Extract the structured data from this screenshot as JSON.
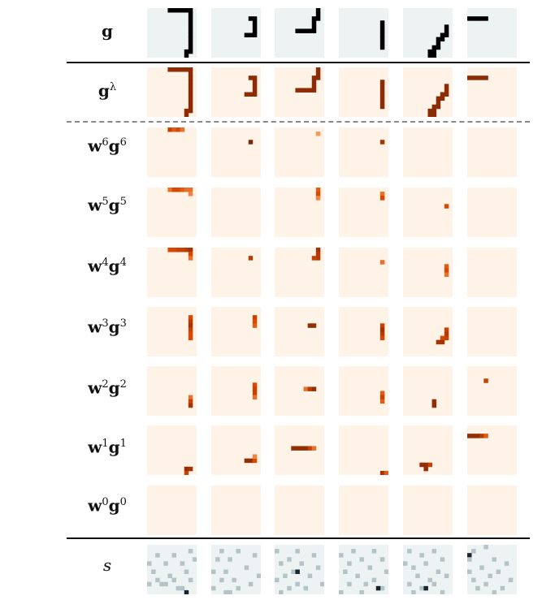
{
  "rows": [
    {
      "id": "g",
      "label": "g",
      "sup": "",
      "style": "bold-serif",
      "bg": "#edf2f2",
      "mode": "binary"
    },
    {
      "id": "g_lambda",
      "label": "g",
      "sup": "λ",
      "style": "bold-serif",
      "bg": "#fff2e6",
      "mode": "heat"
    },
    {
      "id": "w6g6",
      "label": "w",
      "label2": "g",
      "sup": "6",
      "style": "bold-serif",
      "bg": "#fff2e6",
      "mode": "heat"
    },
    {
      "id": "w5g5",
      "label": "w",
      "label2": "g",
      "sup": "5",
      "style": "bold-serif",
      "bg": "#fff2e6",
      "mode": "heat"
    },
    {
      "id": "w4g4",
      "label": "w",
      "label2": "g",
      "sup": "4",
      "style": "bold-serif",
      "bg": "#fff2e6",
      "mode": "heat"
    },
    {
      "id": "w3g3",
      "label": "w",
      "label2": "g",
      "sup": "3",
      "style": "bold-serif",
      "bg": "#fff2e6",
      "mode": "heat"
    },
    {
      "id": "w2g2",
      "label": "w",
      "label2": "g",
      "sup": "2",
      "style": "bold-serif",
      "bg": "#fff2e6",
      "mode": "heat"
    },
    {
      "id": "w1g1",
      "label": "w",
      "label2": "g",
      "sup": "1",
      "style": "bold-serif",
      "bg": "#fff2e6",
      "mode": "heat"
    },
    {
      "id": "w0g0",
      "label": "w",
      "label2": "g",
      "sup": "0",
      "style": "bold-serif",
      "bg": "#fff2e6",
      "mode": "heat"
    },
    {
      "id": "s",
      "label": "s",
      "sup": "",
      "style": "italic",
      "bg": "#edf2f2",
      "mode": "noise"
    }
  ],
  "colors": {
    "heat_dark": "#7f2704",
    "heat_mid": "#d94801",
    "heat_light": "#fdae6b",
    "binary_ink": "#000000",
    "noise_light": "#b4c4c6",
    "noise_dark": "#1b2333"
  },
  "column_count": 6,
  "grid_cells": 12,
  "shapes": [
    {
      "cells": [
        [
          0,
          5
        ],
        [
          0,
          6
        ],
        [
          0,
          7
        ],
        [
          0,
          8
        ],
        [
          0,
          9
        ],
        [
          0,
          10
        ],
        [
          1,
          10
        ],
        [
          2,
          10
        ],
        [
          3,
          10
        ],
        [
          4,
          10
        ],
        [
          5,
          10
        ],
        [
          6,
          10
        ],
        [
          7,
          10
        ],
        [
          8,
          10
        ],
        [
          9,
          10
        ],
        [
          10,
          10
        ],
        [
          10,
          9
        ],
        [
          11,
          9
        ]
      ]
    },
    {
      "cells": [
        [
          2,
          9
        ],
        [
          2,
          10
        ],
        [
          3,
          10
        ],
        [
          4,
          10
        ],
        [
          5,
          10
        ],
        [
          6,
          10
        ],
        [
          6,
          9
        ],
        [
          6,
          8
        ]
      ]
    },
    {
      "cells": [
        [
          0,
          10
        ],
        [
          1,
          10
        ],
        [
          2,
          10
        ],
        [
          2,
          9
        ],
        [
          3,
          9
        ],
        [
          4,
          9
        ],
        [
          5,
          9
        ],
        [
          5,
          8
        ],
        [
          5,
          7
        ],
        [
          5,
          6
        ],
        [
          5,
          5
        ]
      ]
    },
    {
      "cells": [
        [
          3,
          10
        ],
        [
          4,
          10
        ],
        [
          5,
          10
        ],
        [
          6,
          10
        ],
        [
          7,
          10
        ],
        [
          8,
          10
        ],
        [
          9,
          10
        ]
      ]
    },
    {
      "cells": [
        [
          4,
          10
        ],
        [
          5,
          10
        ],
        [
          6,
          10
        ],
        [
          6,
          9
        ],
        [
          7,
          9
        ],
        [
          7,
          8
        ],
        [
          8,
          8
        ],
        [
          9,
          8
        ],
        [
          9,
          7
        ],
        [
          10,
          7
        ],
        [
          11,
          7
        ],
        [
          11,
          6
        ],
        [
          10,
          6
        ]
      ]
    },
    {
      "cells": [
        [
          2,
          0
        ],
        [
          2,
          1
        ],
        [
          2,
          2
        ],
        [
          2,
          3
        ],
        [
          2,
          4
        ]
      ]
    }
  ],
  "layers": {
    "w6g6": [
      [
        [
          0,
          5,
          0.6
        ],
        [
          0,
          6,
          0.4
        ],
        [
          0,
          7,
          0.5
        ],
        [
          0,
          8,
          0.3
        ]
      ],
      [
        [
          3,
          9,
          1.0
        ]
      ],
      [
        [
          1,
          10,
          0.1
        ]
      ],
      [
        [
          3,
          10,
          0.8
        ]
      ],
      [],
      []
    ],
    "w5g5": [
      [
        [
          0,
          5,
          0.3
        ],
        [
          0,
          6,
          0.5
        ],
        [
          0,
          7,
          0.5
        ],
        [
          0,
          8,
          0.4
        ],
        [
          0,
          9,
          0.3
        ],
        [
          0,
          10,
          0.3
        ],
        [
          1,
          10,
          0.2
        ]
      ],
      [],
      [
        [
          0,
          10,
          0.4
        ],
        [
          1,
          10,
          0.5
        ],
        [
          2,
          10,
          0.2
        ]
      ],
      [
        [
          1,
          10,
          0.3
        ],
        [
          2,
          10,
          0.5
        ]
      ],
      [
        [
          4,
          10,
          0.5
        ]
      ],
      []
    ],
    "w4g4": [
      [
        [
          0,
          5,
          0.5
        ],
        [
          0,
          6,
          0.5
        ],
        [
          0,
          7,
          0.6
        ],
        [
          0,
          8,
          0.6
        ],
        [
          0,
          9,
          0.7
        ],
        [
          0,
          10,
          0.8
        ],
        [
          1,
          10,
          0.5
        ],
        [
          2,
          10,
          0.3
        ]
      ],
      [
        [
          2,
          9,
          0.7
        ]
      ],
      [
        [
          0,
          10,
          0.8
        ],
        [
          1,
          10,
          0.7
        ],
        [
          2,
          10,
          0.7
        ],
        [
          2,
          9,
          0.6
        ]
      ],
      [
        [
          3,
          10,
          0.3
        ]
      ],
      [
        [
          4,
          10,
          0.4
        ],
        [
          5,
          10,
          0.5
        ],
        [
          6,
          10,
          0.3
        ]
      ],
      []
    ],
    "w3g3": [
      [
        [
          2,
          10,
          0.5
        ],
        [
          3,
          10,
          0.7
        ],
        [
          4,
          10,
          0.8
        ],
        [
          5,
          10,
          0.6
        ],
        [
          6,
          10,
          0.5
        ],
        [
          7,
          10,
          0.5
        ]
      ],
      [
        [
          2,
          10,
          0.6
        ],
        [
          3,
          10,
          0.5
        ],
        [
          4,
          10,
          0.4
        ]
      ],
      [
        [
          4,
          8,
          0.9
        ],
        [
          4,
          9,
          0.9
        ]
      ],
      [
        [
          4,
          10,
          0.6
        ],
        [
          5,
          10,
          0.8
        ],
        [
          6,
          10,
          0.7
        ],
        [
          7,
          10,
          0.5
        ]
      ],
      [
        [
          5,
          10,
          0.6
        ],
        [
          6,
          10,
          0.7
        ],
        [
          7,
          10,
          0.6
        ],
        [
          7,
          9,
          0.5
        ],
        [
          8,
          9,
          0.8
        ],
        [
          8,
          8,
          0.8
        ]
      ],
      []
    ],
    "w2g2": [
      [
        [
          7,
          10,
          0.3
        ],
        [
          8,
          10,
          0.6
        ],
        [
          9,
          10,
          0.8
        ]
      ],
      [
        [
          4,
          10,
          0.5
        ],
        [
          5,
          10,
          0.6
        ],
        [
          6,
          10,
          0.6
        ],
        [
          7,
          10,
          0.3
        ]
      ],
      [
        [
          5,
          7,
          0.3
        ],
        [
          5,
          8,
          0.7
        ],
        [
          5,
          9,
          0.9
        ]
      ],
      [
        [
          6,
          10,
          0.4
        ],
        [
          7,
          10,
          0.6
        ],
        [
          8,
          10,
          0.4
        ]
      ],
      [
        [
          8,
          7,
          0.9
        ],
        [
          9,
          7,
          0.9
        ]
      ],
      [
        [
          3,
          4,
          0.6
        ]
      ]
    ],
    "w1g1": [
      [
        [
          10,
          9,
          0.9
        ],
        [
          10,
          10,
          0.8
        ],
        [
          11,
          9,
          0.6
        ]
      ],
      [
        [
          8,
          8,
          0.9
        ],
        [
          8,
          9,
          0.9
        ],
        [
          8,
          10,
          0.5
        ],
        [
          7,
          10,
          0.2
        ]
      ],
      [
        [
          5,
          4,
          0.9
        ],
        [
          5,
          5,
          0.9
        ],
        [
          5,
          6,
          0.9
        ],
        [
          5,
          7,
          0.9
        ],
        [
          5,
          8,
          0.6
        ],
        [
          5,
          9,
          0.3
        ]
      ],
      [
        [
          11,
          10,
          0.8
        ],
        [
          11,
          11,
          0.4
        ]
      ],
      [
        [
          9,
          4,
          0.9
        ],
        [
          9,
          5,
          0.9
        ],
        [
          10,
          5,
          0.9
        ],
        [
          9,
          6,
          0.6
        ]
      ],
      [
        [
          2,
          0,
          0.9
        ],
        [
          2,
          1,
          0.9
        ],
        [
          2,
          2,
          0.9
        ],
        [
          2,
          3,
          0.7
        ],
        [
          2,
          4,
          0.4
        ]
      ]
    ],
    "w0g0": [
      [],
      [],
      [],
      [],
      [],
      []
    ]
  },
  "noise": [
    [
      [
        1,
        10,
        0.4
      ],
      [
        2,
        2,
        0.3
      ],
      [
        2,
        6,
        0.3
      ],
      [
        3,
        11,
        0.3
      ],
      [
        4,
        0,
        0.3
      ],
      [
        4,
        4,
        0.3
      ],
      [
        4,
        8,
        0.3
      ],
      [
        6,
        1,
        0.3
      ],
      [
        6,
        9,
        0.3
      ],
      [
        7,
        5,
        0.3
      ],
      [
        8,
        2,
        0.3
      ],
      [
        8,
        6,
        0.3
      ],
      [
        8,
        10,
        0.3
      ],
      [
        9,
        0,
        0.3
      ],
      [
        9,
        3,
        0.3
      ],
      [
        9,
        4,
        0.3
      ],
      [
        10,
        7,
        0.3
      ],
      [
        10,
        8,
        0.3
      ],
      [
        11,
        9,
        1.0
      ]
    ],
    [
      [
        1,
        2,
        0.3
      ],
      [
        1,
        6,
        0.3
      ],
      [
        2,
        10,
        0.3
      ],
      [
        3,
        1,
        0.3
      ],
      [
        3,
        4,
        0.3
      ],
      [
        5,
        8,
        0.3
      ],
      [
        6,
        0,
        0.3
      ],
      [
        6,
        3,
        0.3
      ],
      [
        7,
        11,
        0.3
      ],
      [
        8,
        2,
        0.3
      ],
      [
        8,
        5,
        0.3
      ],
      [
        9,
        9,
        0.3
      ],
      [
        10,
        0,
        0.3
      ],
      [
        10,
        6,
        0.3
      ],
      [
        11,
        3,
        0.3
      ],
      [
        11,
        4,
        0.3
      ]
    ],
    [
      [
        1,
        0,
        0.3
      ],
      [
        1,
        5,
        0.3
      ],
      [
        2,
        9,
        0.3
      ],
      [
        3,
        3,
        0.3
      ],
      [
        4,
        1,
        0.3
      ],
      [
        4,
        6,
        0.3
      ],
      [
        5,
        10,
        0.3
      ],
      [
        6,
        4,
        0.3
      ],
      [
        7,
        2,
        0.3
      ],
      [
        7,
        8,
        0.3
      ],
      [
        8,
        0,
        0.3
      ],
      [
        9,
        5,
        0.3
      ],
      [
        9,
        11,
        0.3
      ],
      [
        10,
        3,
        0.3
      ],
      [
        10,
        7,
        0.3
      ],
      [
        11,
        1,
        0.3
      ],
      [
        6,
        5,
        1.0
      ]
    ],
    [
      [
        1,
        3,
        0.3
      ],
      [
        1,
        8,
        0.3
      ],
      [
        2,
        0,
        0.3
      ],
      [
        3,
        5,
        0.3
      ],
      [
        3,
        10,
        0.3
      ],
      [
        4,
        2,
        0.3
      ],
      [
        5,
        7,
        0.3
      ],
      [
        6,
        1,
        0.3
      ],
      [
        6,
        11,
        0.3
      ],
      [
        7,
        4,
        0.3
      ],
      [
        8,
        8,
        0.3
      ],
      [
        9,
        2,
        0.3
      ],
      [
        9,
        6,
        0.3
      ],
      [
        10,
        10,
        0.3
      ],
      [
        11,
        0,
        0.3
      ],
      [
        11,
        5,
        0.3
      ],
      [
        10,
        9,
        1.0
      ]
    ],
    [
      [
        1,
        1,
        0.3
      ],
      [
        1,
        7,
        0.3
      ],
      [
        2,
        4,
        0.3
      ],
      [
        3,
        9,
        0.3
      ],
      [
        4,
        0,
        0.3
      ],
      [
        4,
        5,
        0.3
      ],
      [
        5,
        2,
        0.3
      ],
      [
        6,
        8,
        0.3
      ],
      [
        7,
        3,
        0.3
      ],
      [
        7,
        10,
        0.3
      ],
      [
        8,
        6,
        0.3
      ],
      [
        9,
        1,
        0.3
      ],
      [
        9,
        7,
        0.3
      ],
      [
        10,
        4,
        0.3
      ],
      [
        11,
        9,
        0.3
      ],
      [
        11,
        2,
        0.3
      ],
      [
        10,
        5,
        1.0
      ]
    ],
    [
      [
        0,
        4,
        0.3
      ],
      [
        1,
        1,
        0.3
      ],
      [
        2,
        0,
        1.0
      ],
      [
        3,
        0,
        0.6
      ],
      [
        3,
        6,
        0.3
      ],
      [
        4,
        9,
        0.3
      ],
      [
        5,
        3,
        0.3
      ],
      [
        6,
        0,
        0.3
      ],
      [
        6,
        7,
        0.3
      ],
      [
        7,
        5,
        0.3
      ],
      [
        8,
        1,
        0.3
      ],
      [
        8,
        10,
        0.3
      ],
      [
        9,
        4,
        0.3
      ],
      [
        10,
        2,
        0.3
      ],
      [
        10,
        8,
        0.3
      ],
      [
        11,
        6,
        0.3
      ]
    ]
  ]
}
